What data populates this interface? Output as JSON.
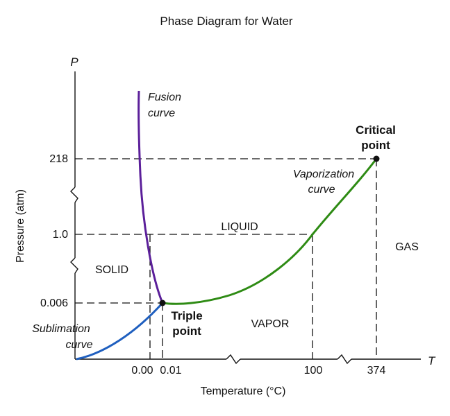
{
  "title": "Phase Diagram for Water",
  "axes": {
    "y_symbol": "P",
    "x_symbol": "T",
    "ylabel": "Pressure (atm)",
    "xlabel": "Temperature (°C)",
    "y_ticks": [
      "218",
      "1.0",
      "0.006"
    ],
    "x_ticks": [
      "0.00",
      "0.01",
      "100",
      "374"
    ]
  },
  "regions": {
    "solid": "SOLID",
    "liquid": "LIQUID",
    "vapor": "VAPOR",
    "gas": "GAS"
  },
  "curves": {
    "fusion": [
      "Fusion",
      "curve"
    ],
    "vaporization": [
      "Vaporization",
      "curve"
    ],
    "sublimation": [
      "Sublimation",
      "curve"
    ]
  },
  "points": {
    "triple": [
      "Triple",
      "point"
    ],
    "critical": [
      "Critical",
      "point"
    ]
  },
  "colors": {
    "fusion": "#5b1f9a",
    "vaporization": "#2e8b14",
    "sublimation": "#1f5fbf",
    "points": "#111111"
  }
}
